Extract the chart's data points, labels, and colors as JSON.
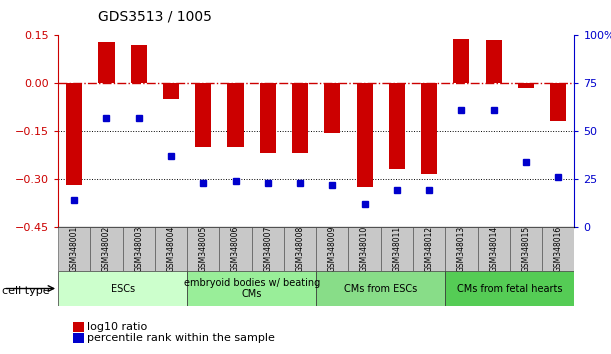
{
  "title": "GDS3513 / 1005",
  "samples": [
    "GSM348001",
    "GSM348002",
    "GSM348003",
    "GSM348004",
    "GSM348005",
    "GSM348006",
    "GSM348007",
    "GSM348008",
    "GSM348009",
    "GSM348010",
    "GSM348011",
    "GSM348012",
    "GSM348013",
    "GSM348014",
    "GSM348015",
    "GSM348016"
  ],
  "log10_ratio": [
    -0.32,
    0.13,
    0.12,
    -0.05,
    -0.2,
    -0.2,
    -0.22,
    -0.22,
    -0.155,
    -0.325,
    -0.27,
    -0.285,
    0.14,
    0.135,
    -0.015,
    -0.12
  ],
  "percentile_rank": [
    14,
    57,
    57,
    37,
    23,
    24,
    23,
    23,
    22,
    12,
    19,
    19,
    61,
    61,
    34,
    26
  ],
  "bar_color": "#cc0000",
  "dot_color": "#0000cc",
  "ylim_left": [
    -0.45,
    0.15
  ],
  "ylim_right": [
    0,
    100
  ],
  "yticks_left": [
    0.15,
    0.0,
    -0.15,
    -0.3,
    -0.45
  ],
  "yticks_right": [
    100,
    75,
    50,
    25,
    0
  ],
  "hlines_dotted": [
    -0.15,
    -0.3
  ],
  "cell_type_groups": [
    {
      "label": "ESCs",
      "start": 0,
      "end": 3,
      "color": "#ccffcc"
    },
    {
      "label": "embryoid bodies w/ beating\nCMs",
      "start": 4,
      "end": 7,
      "color": "#99ee99"
    },
    {
      "label": "CMs from ESCs",
      "start": 8,
      "end": 11,
      "color": "#88dd88"
    },
    {
      "label": "CMs from fetal hearts",
      "start": 12,
      "end": 15,
      "color": "#55cc55"
    }
  ],
  "legend_red_label": "log10 ratio",
  "legend_blue_label": "percentile rank within the sample",
  "cell_type_label": "cell type"
}
